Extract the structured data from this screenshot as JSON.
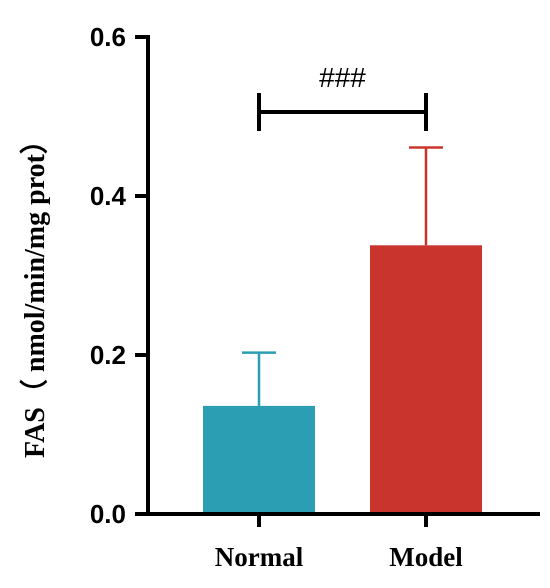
{
  "chart_data": {
    "type": "bar",
    "categories": [
      "Normal",
      "Model"
    ],
    "values": [
      0.136,
      0.338
    ],
    "errors": [
      0.067,
      0.123
    ],
    "colors": [
      "#2B9EB3",
      "#C9352D"
    ],
    "ylabel": "FAS（ nmol/min/mg prot）",
    "ylim": [
      0,
      0.6
    ],
    "yticks": [
      0.0,
      0.2,
      0.4,
      0.6
    ],
    "ytick_labels": [
      "0.0",
      "0.2",
      "0.4",
      "0.6"
    ],
    "grid": false,
    "annotations": [
      {
        "text": "###",
        "between": [
          "Normal",
          "Model"
        ]
      }
    ]
  }
}
